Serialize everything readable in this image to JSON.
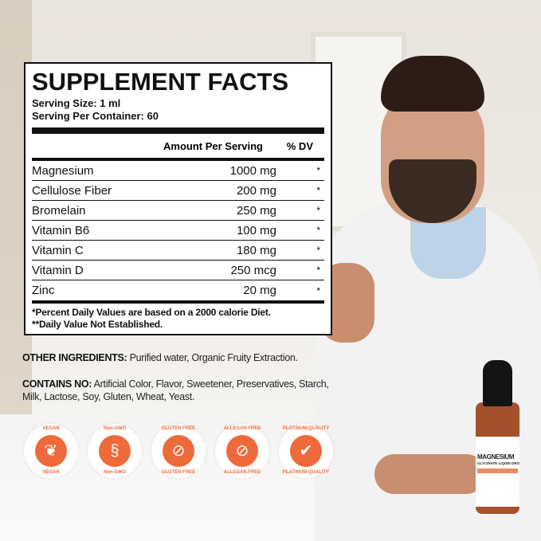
{
  "panel": {
    "title": "SUPPLEMENT FACTS",
    "serving_size": "Serving Size: 1 ml",
    "serving_per_container": "Serving Per Container: 60",
    "col_amount": "Amount Per Serving",
    "col_dv": "% DV",
    "rows": [
      {
        "name": "Magnesium",
        "amount": "1000 mg",
        "dv": "*"
      },
      {
        "name": "Cellulose Fiber",
        "amount": "200 mg",
        "dv": "*"
      },
      {
        "name": "Bromelain",
        "amount": "250 mg",
        "dv": "*"
      },
      {
        "name": "Vitamin B6",
        "amount": "100 mg",
        "dv": "*"
      },
      {
        "name": "Vitamin C",
        "amount": "180 mg",
        "dv": "*"
      },
      {
        "name": "Vitamin D",
        "amount": "250 mcg",
        "dv": "*"
      },
      {
        "name": "Zinc",
        "amount": "20 mg",
        "dv": "*"
      }
    ],
    "footnote1": "*Percent Daily Values are based on a 2000 calorie Diet.",
    "footnote2": "**Daily Value Not Established."
  },
  "other_ingredients": {
    "label": "OTHER INGREDIENTS:",
    "text": " Purified water, Organic Fruity Extraction."
  },
  "contains_no": {
    "label": "CONTAINS NO:",
    "text": " Artificial Color, Flavor, Sweetener, Preservatives, Starch, Milk, Lactose, Soy, Gluten, Wheat, Yeast."
  },
  "badges": [
    {
      "label": "VEGAN",
      "icon": "leaf-icon",
      "glyph": "❦"
    },
    {
      "label": "Non-GMO",
      "icon": "dna-icon",
      "glyph": "§"
    },
    {
      "label": "GLUTEN FREE",
      "icon": "wheat-crossed-icon",
      "glyph": "⊘"
    },
    {
      "label": "ALLEGAN FREE",
      "icon": "allergen-crossed-icon",
      "glyph": "⊘"
    },
    {
      "label": "PLATINUM QUALITY",
      "icon": "shield-check-icon",
      "glyph": "✔"
    }
  ],
  "bottle": {
    "brand_line1": "MAGNESIUM",
    "brand_line2": "GLYCINATE LIQUID DROPS"
  },
  "colors": {
    "accent": "#ee6a3a",
    "bottle": "#a5502c"
  }
}
